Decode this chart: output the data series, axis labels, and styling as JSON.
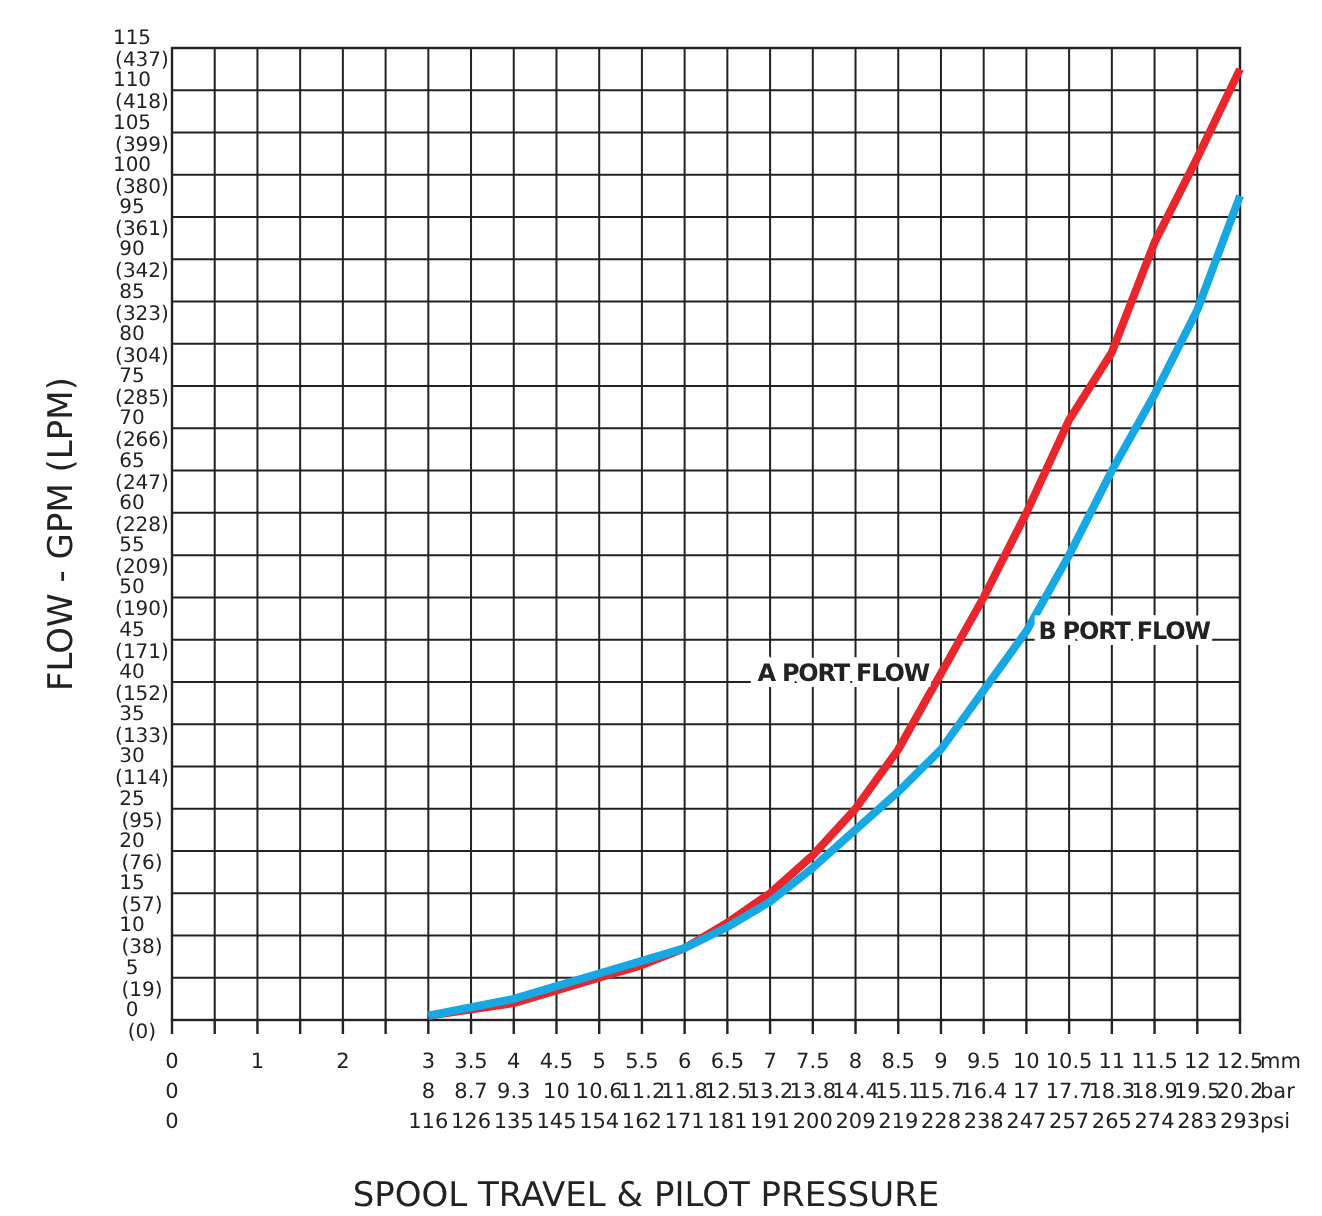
{
  "chart_data": {
    "type": "line",
    "xlabel": "SPOOL TRAVEL & PILOT PRESSURE",
    "ylabel": "FLOW - GPM (LPM)",
    "xlim": [
      0,
      12.5
    ],
    "ylim": [
      0,
      115
    ],
    "xticks": [
      {
        "value": 0,
        "label": "0\n0\n0"
      },
      {
        "value": 0.5,
        "label": null
      },
      {
        "value": 1,
        "label": "1"
      },
      {
        "value": 1.5,
        "label": null
      },
      {
        "value": 2,
        "label": "2"
      },
      {
        "value": 2.5,
        "label": null
      },
      {
        "value": 3,
        "label": "3\n8\n116"
      },
      {
        "value": 3.5,
        "label": "3.5\n8.7\n126"
      },
      {
        "value": 4,
        "label": "4\n9.3\n135"
      },
      {
        "value": 4.5,
        "label": "4.5\n10\n145"
      },
      {
        "value": 5,
        "label": "5\n10.6\n154"
      },
      {
        "value": 5.5,
        "label": "5.5\n11.2\n162"
      },
      {
        "value": 6,
        "label": "6\n11.8\n171"
      },
      {
        "value": 6.5,
        "label": "6.5\n12.5\n181"
      },
      {
        "value": 7,
        "label": "7\n13.2\n191"
      },
      {
        "value": 7.5,
        "label": "7.5\n13.8\n200"
      },
      {
        "value": 8,
        "label": "8\n14.4\n209"
      },
      {
        "value": 8.5,
        "label": "8.5\n15.1\n219"
      },
      {
        "value": 9,
        "label": "9\n15.7\n228"
      },
      {
        "value": 9.5,
        "label": "9.5\n16.4\n238"
      },
      {
        "value": 10,
        "label": "10\n17\n247"
      },
      {
        "value": 10.5,
        "label": "10.5\n17.7\n257"
      },
      {
        "value": 11,
        "label": "11\n18.3\n265"
      },
      {
        "value": 11.5,
        "label": "11.5\n18.9\n274"
      },
      {
        "value": 12,
        "label": "12\n19.5\n283"
      },
      {
        "value": 12.5,
        "label": "12.5\n20.2\n293"
      }
    ],
    "yticks": [
      0,
      5,
      10,
      15,
      20,
      25,
      30,
      35,
      40,
      45,
      50,
      55,
      60,
      65,
      70,
      75,
      80,
      85,
      90,
      95,
      100,
      105,
      110,
      115
    ],
    "y2lim": [
      0,
      437
    ],
    "y2ticks": [
      {
        "value": 0,
        "label": "(0)"
      },
      {
        "value": 19,
        "label": "(19)"
      },
      {
        "value": 38,
        "label": "(38)"
      },
      {
        "value": 57,
        "label": "(57)"
      },
      {
        "value": 76,
        "label": "(76)"
      },
      {
        "value": 95,
        "label": "(95)"
      },
      {
        "value": 114,
        "label": "(114)"
      },
      {
        "value": 133,
        "label": "(133)"
      },
      {
        "value": 152,
        "label": "(152)"
      },
      {
        "value": 171,
        "label": "(171)"
      },
      {
        "value": 190,
        "label": "(190)"
      },
      {
        "value": 209,
        "label": "(209)"
      },
      {
        "value": 228,
        "label": "(228)"
      },
      {
        "value": 247,
        "label": "(247)"
      },
      {
        "value": 266,
        "label": "(266)"
      },
      {
        "value": 285,
        "label": "(285)"
      },
      {
        "value": 304,
        "label": "(304)"
      },
      {
        "value": 323,
        "label": "(323)"
      },
      {
        "value": 342,
        "label": "(342)"
      },
      {
        "value": 361,
        "label": "(361)"
      },
      {
        "value": 380,
        "label": "(380)"
      },
      {
        "value": 399,
        "label": "(399)"
      },
      {
        "value": 418,
        "label": "(418)"
      },
      {
        "value": 437,
        "label": "(437)"
      }
    ],
    "grid": true,
    "annotations": [
      "mm\nbar\npsi"
    ],
    "x": [
      3,
      4,
      4.5,
      5,
      5.5,
      6,
      6.5,
      7,
      7.5,
      8,
      8.5,
      9,
      9.5,
      10,
      10.5,
      11,
      11.5,
      12,
      12.5
    ],
    "series": [
      {
        "name": "A  PORT FLOW",
        "color": "#e8262b",
        "values": [
          0.5,
          2,
          3.5,
          5,
          6.5,
          8.5,
          11.5,
          15,
          19.5,
          25,
          32,
          41,
          50,
          60,
          71,
          79,
          92,
          102,
          112.5
        ]
      },
      {
        "name": "B PORT FLOW",
        "color": "#17a8e3",
        "values": [
          0.5,
          2.5,
          4,
          5.5,
          7,
          8.5,
          11,
          14,
          18,
          22.5,
          27,
          32,
          39,
          46,
          55,
          65,
          74,
          84,
          97.5
        ]
      }
    ]
  }
}
